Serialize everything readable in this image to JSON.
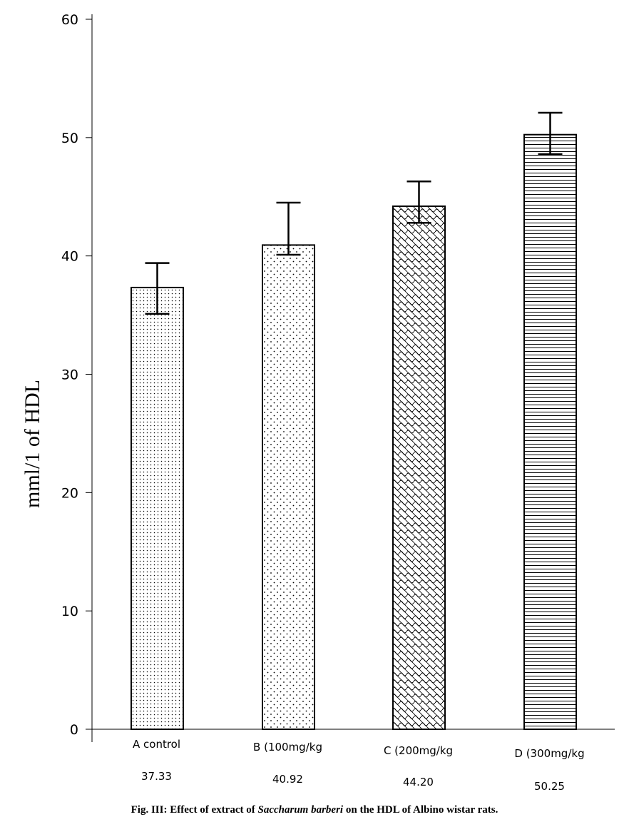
{
  "chart_data": {
    "type": "bar",
    "title": "",
    "xlabel": "",
    "ylabel": "mml/1 of HDL",
    "ylim": [
      0,
      60
    ],
    "yticks": [
      0,
      10,
      20,
      30,
      40,
      50,
      60
    ],
    "categories": [
      "A control",
      "B (100mg/kg",
      "C (200mg/kg",
      "D (300mg/kg"
    ],
    "values": [
      37.33,
      40.92,
      44.2,
      50.25
    ],
    "value_labels": [
      "37.33",
      "40.92",
      "44.20",
      "50.25"
    ],
    "error_bars": [
      {
        "low": 35.1,
        "high": 39.4
      },
      {
        "low": 40.1,
        "high": 44.5
      },
      {
        "low": 42.8,
        "high": 46.3
      },
      {
        "low": 48.6,
        "high": 52.1
      }
    ],
    "bar_patterns": [
      "fine-dots",
      "sparse-dots",
      "crosshatch-wave",
      "horizontal-lines"
    ],
    "bar_fill_color": "#ffffff",
    "bar_stroke_color": "#000000",
    "grid": false,
    "legend": "none"
  },
  "caption": {
    "prefix": "Fig. III: Effect of extract of ",
    "species": "Saccharum barberi",
    "suffix": " on the HDL of Albino wistar rats."
  }
}
